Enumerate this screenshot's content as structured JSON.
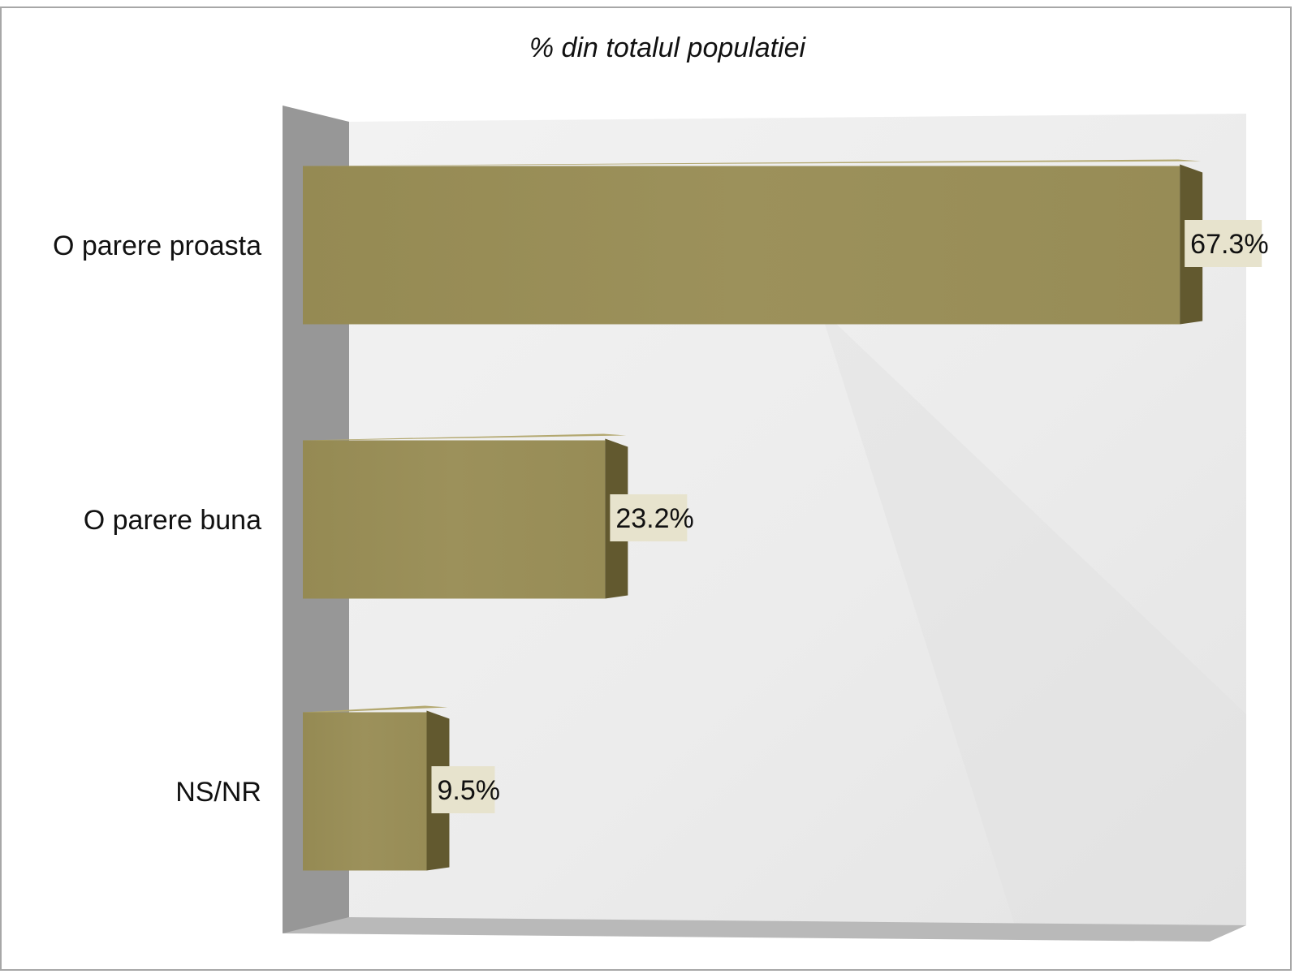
{
  "chart_data": {
    "type": "bar",
    "orientation": "horizontal",
    "title": "% din totalul populatiei",
    "categories": [
      "O parere proasta",
      "O parere buna",
      "NS/NR"
    ],
    "values": [
      67.3,
      23.2,
      9.5
    ],
    "value_labels": [
      "67.3%",
      "23.2%",
      "9.5%"
    ],
    "xlabel": "",
    "ylabel": "",
    "xlim": [
      0,
      70
    ],
    "grid": false,
    "legend": "none",
    "style": "3d",
    "colors": {
      "bar_front": "#9a8f58",
      "bar_side": "#62592f",
      "bar_top": "#b3a870",
      "wall_left": "#979797",
      "floor": "#b9b9b9",
      "back_wall": "#ececec",
      "label_bg": "#e7e3cd"
    }
  }
}
